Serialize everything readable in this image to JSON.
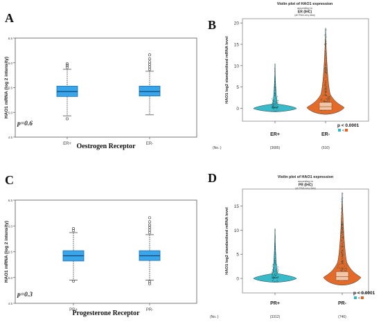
{
  "chart_data": [
    {
      "panel": "A",
      "type": "box",
      "xlabel": "Oestrogen Receptor",
      "ylabel": "HAO1 mRNA (log 2 intensity)",
      "annotation": "p=0.6",
      "ylim": [
        4.5,
        6.5
      ],
      "yticks": [
        "4.5",
        "5.0",
        "5.5",
        "6.0",
        "6.5"
      ],
      "categories": [
        "ER+",
        "ER-"
      ],
      "boxes": [
        {
          "category": "ER+",
          "min": 4.93,
          "q1": 5.32,
          "median": 5.42,
          "q3": 5.53,
          "max": 5.87,
          "outliers": [
            4.87,
            5.91,
            5.95,
            5.98
          ]
        },
        {
          "category": "ER-",
          "min": 4.95,
          "q1": 5.33,
          "median": 5.42,
          "q3": 5.53,
          "max": 5.83,
          "outliers": [
            5.87,
            5.92,
            5.97,
            6.02,
            6.08,
            6.16
          ]
        }
      ],
      "box_color": "#39a5ea"
    },
    {
      "panel": "B",
      "type": "violin",
      "title": "Violin plot of HAO1 expression",
      "subtitle1": "according to",
      "subtitle2": "ER (IHC)",
      "subtitle3": "(all RNA-seq data)",
      "ylabel": "HAO1 log2 standardised mRNA level",
      "ylim": [
        -3,
        21
      ],
      "yticks": [
        "0",
        "5",
        "10",
        "15",
        "20"
      ],
      "categories": [
        "ER+",
        "ER-"
      ],
      "counts_label": "(No.:)",
      "counts": [
        "(3685)",
        "(510)"
      ],
      "series": [
        {
          "category": "ER+",
          "color": "#2eb6c5",
          "median": 0.1,
          "max": 10.5
        },
        {
          "category": "ER-",
          "color": "#e2621e",
          "median": 0.3,
          "max": 18.8
        }
      ],
      "pvalue": "p < 0.0001",
      "pcompare": "<"
    },
    {
      "panel": "C",
      "type": "box",
      "xlabel": "Progesterone Receptor",
      "ylabel": "HAO1 mRNA (log 2 intensity)",
      "annotation": "p=0.3",
      "ylim": [
        4.5,
        6.5
      ],
      "yticks": [
        "4.5",
        "5.0",
        "5.5",
        "6.0",
        "6.5"
      ],
      "categories": [
        "PR+",
        "PR-"
      ],
      "boxes": [
        {
          "category": "PR+",
          "min": 4.95,
          "q1": 5.32,
          "median": 5.42,
          "q3": 5.52,
          "max": 5.87,
          "outliers": [
            4.93,
            5.91,
            5.95
          ]
        },
        {
          "category": "PR-",
          "min": 4.95,
          "q1": 5.33,
          "median": 5.42,
          "q3": 5.52,
          "max": 5.83,
          "outliers": [
            4.88,
            4.92,
            5.87,
            5.92,
            5.97,
            6.02,
            6.08,
            6.16
          ]
        }
      ],
      "box_color": "#39a5ea"
    },
    {
      "panel": "D",
      "type": "violin",
      "title": "Violin plot of HAO1 expression",
      "subtitle1": "according to",
      "subtitle2": "PR (IHC)",
      "subtitle3": "(all RNA-seq data)",
      "ylabel": "HAO1 log2 standardised mRNA level",
      "ylim": [
        -3,
        18.5
      ],
      "yticks": [
        "0",
        "5",
        "10",
        "15"
      ],
      "categories": [
        "PR+",
        "PR-"
      ],
      "counts_label": "(No.:)",
      "counts": [
        "(3312)",
        "(746)"
      ],
      "series": [
        {
          "category": "PR+",
          "color": "#2eb6c5",
          "median": 0.1,
          "max": 10.3
        },
        {
          "category": "PR-",
          "color": "#e2621e",
          "median": 0.3,
          "max": 17.8
        }
      ],
      "pvalue": "p < 0.0001",
      "pcompare": "<"
    }
  ]
}
